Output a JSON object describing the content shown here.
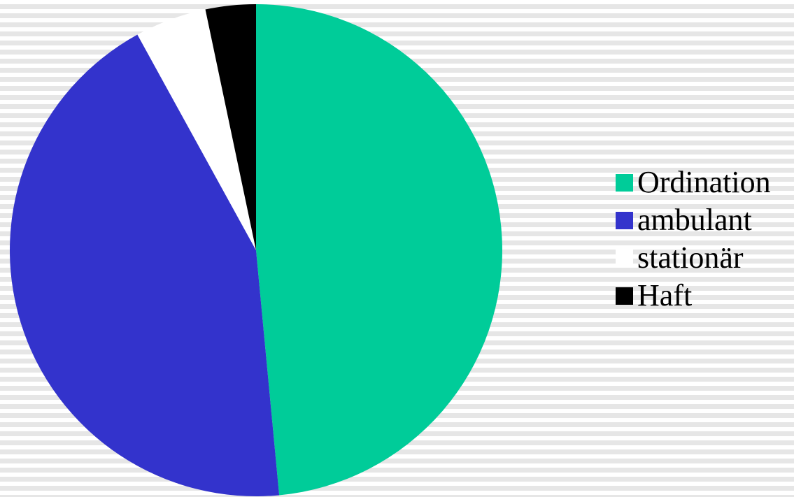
{
  "chart_data": {
    "type": "pie",
    "title": "",
    "start": "12 o'clock",
    "direction": "clockwise",
    "slices": [
      {
        "label": "Ordination",
        "value": 48.5,
        "color": "#00cc99"
      },
      {
        "label": "ambulant",
        "value": 43.5,
        "color": "#3333cc"
      },
      {
        "label": "stationär",
        "value": 4.7,
        "color": "#ffffff"
      },
      {
        "label": "Haft",
        "value": 3.3,
        "color": "#000000"
      }
    ],
    "legend_position": "right"
  }
}
